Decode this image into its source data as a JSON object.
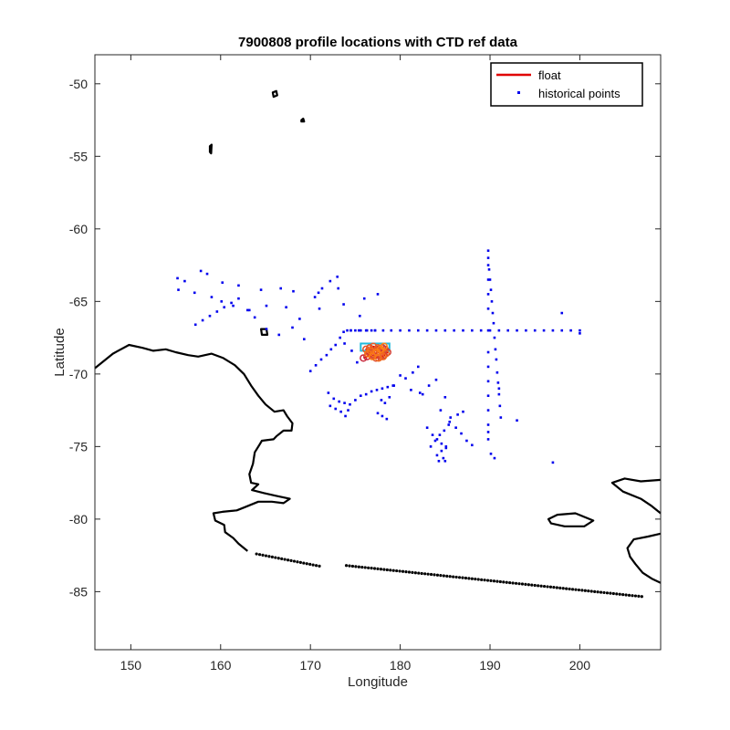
{
  "chart_data": {
    "type": "scatter",
    "title": "7900808 profile locations with CTD ref data",
    "xlabel": "Longitude",
    "ylabel": "Latitude",
    "xlim": [
      146,
      209
    ],
    "ylim": [
      -89,
      -48
    ],
    "xticks": [
      150,
      160,
      170,
      180,
      190,
      200
    ],
    "yticks": [
      -50,
      -55,
      -60,
      -65,
      -70,
      -75,
      -80,
      -85
    ],
    "xtick_labels": [
      "150",
      "160",
      "170",
      "180",
      "190",
      "200"
    ],
    "ytick_labels": [
      "-50",
      "-55",
      "-60",
      "-65",
      "-70",
      "-75",
      "-80",
      "-85"
    ],
    "grid": false,
    "legend_position": "top-right",
    "colors": {
      "float": "#e00000",
      "historical": "#0000ee",
      "coast": "#000000",
      "ref_cyan": "#22bbdd"
    },
    "series": [
      {
        "name": "float",
        "x": [
          175.9,
          176.3,
          176.8,
          177.2,
          177.6,
          178.0,
          178.3,
          178.6,
          178.2,
          177.8,
          177.3,
          176.9,
          176.5,
          176.2,
          176.6,
          177.0,
          177.5,
          177.9,
          178.4,
          178.1,
          177.6,
          177.1,
          176.7,
          176.4,
          176.9,
          177.4,
          177.8,
          178.2
        ],
        "y": [
          -68.9,
          -68.8,
          -68.6,
          -68.4,
          -68.3,
          -68.2,
          -68.3,
          -68.5,
          -68.7,
          -68.8,
          -68.9,
          -68.7,
          -68.5,
          -68.3,
          -68.2,
          -68.1,
          -68.2,
          -68.4,
          -68.6,
          -68.8,
          -68.9,
          -68.6,
          -68.4,
          -68.6,
          -68.8,
          -68.5,
          -68.3,
          -68.1
        ]
      },
      {
        "name": "historical points",
        "x": [
          155.2,
          156.0,
          157.8,
          158.5,
          160.2,
          162.0,
          164.5,
          166.7,
          168.1,
          170.9,
          173.1,
          176.0,
          177.5,
          155.3,
          157.1,
          159.0,
          160.1,
          161.4,
          163.2,
          165.1,
          167.3,
          168.8,
          171.0,
          173.7,
          175.5,
          157.2,
          158.0,
          158.8,
          159.6,
          160.4,
          161.2,
          162.0,
          163.0,
          163.8,
          165.1,
          166.5,
          168.0,
          169.3,
          170.5,
          171.3,
          172.2,
          173.0,
          173.8,
          174.6,
          175.2,
          170.0,
          170.6,
          171.2,
          171.8,
          172.3,
          172.8,
          173.3,
          173.7,
          174.1,
          174.5,
          175.0,
          175.6,
          176.2,
          176.8,
          177.2,
          174.5,
          175.4,
          176.3,
          177.2,
          178.1,
          179.0,
          180.0,
          181.0,
          182.0,
          183.0,
          184.0,
          185.0,
          186.0,
          187.0,
          188.0,
          189.0,
          190.0,
          191.0,
          192.0,
          193.0,
          194.0,
          195.0,
          196.0,
          197.0,
          198.0,
          199.0,
          200.0,
          189.8,
          189.9,
          190.0,
          190.1,
          190.2,
          190.3,
          190.4,
          190.5,
          190.6,
          190.7,
          190.8,
          190.9,
          191.0,
          191.1,
          191.2,
          189.8,
          189.8,
          189.8,
          189.8,
          189.8,
          189.8,
          189.8,
          189.8,
          189.8,
          189.8,
          189.8,
          189.8,
          189.8,
          189.8,
          172.0,
          172.6,
          173.2,
          173.8,
          174.4,
          175.0,
          175.6,
          176.2,
          176.8,
          177.4,
          178.0,
          178.6,
          179.2,
          172.2,
          172.8,
          173.4,
          173.9,
          174.2,
          177.5,
          178.0,
          178.5,
          177.9,
          178.3,
          178.8,
          179.3,
          180.0,
          181.2,
          182.5,
          183.0,
          183.6,
          184.1,
          184.6,
          185.1,
          183.4,
          183.9,
          184.4,
          184.9,
          185.4,
          184.1,
          184.6,
          185.1,
          184.3,
          184.8,
          184.5,
          185.5,
          186.2,
          186.8,
          187.4,
          188.0,
          185.0,
          185.6,
          186.4,
          187.0,
          190.1,
          190.5,
          193.0,
          191.0,
          197.0,
          200.0,
          198.0,
          182.0,
          181.4,
          180.6,
          182.2,
          183.2,
          184.0,
          185.0
        ],
        "y": [
          -63.4,
          -63.6,
          -62.9,
          -63.1,
          -63.7,
          -63.9,
          -64.2,
          -64.1,
          -64.3,
          -64.4,
          -64.1,
          -64.8,
          -64.5,
          -64.2,
          -64.4,
          -64.7,
          -65.0,
          -65.3,
          -65.6,
          -65.3,
          -65.4,
          -66.2,
          -65.5,
          -65.2,
          -66.0,
          -66.6,
          -66.3,
          -66.0,
          -65.7,
          -65.4,
          -65.1,
          -64.8,
          -65.6,
          -66.1,
          -66.9,
          -67.3,
          -66.8,
          -67.6,
          -64.7,
          -64.1,
          -63.6,
          -63.3,
          -67.9,
          -68.4,
          -69.2,
          -69.8,
          -69.4,
          -69.0,
          -68.7,
          -68.3,
          -68.0,
          -67.5,
          -67.1,
          -67.0,
          -67.0,
          -67.0,
          -67.0,
          -67.0,
          -67.0,
          -67.0,
          -67.0,
          -67.0,
          -67.0,
          -67.0,
          -67.0,
          -67.0,
          -67.0,
          -67.0,
          -67.0,
          -67.0,
          -67.0,
          -67.0,
          -67.0,
          -67.0,
          -67.0,
          -67.0,
          -67.0,
          -67.0,
          -67.0,
          -67.0,
          -67.0,
          -67.0,
          -67.0,
          -67.0,
          -67.0,
          -67.0,
          -67.0,
          -62.0,
          -62.8,
          -63.5,
          -64.2,
          -65.0,
          -65.8,
          -66.5,
          -67.5,
          -68.3,
          -69.0,
          -69.9,
          -70.6,
          -71.4,
          -72.2,
          -73.0,
          -61.5,
          -62.5,
          -63.5,
          -64.5,
          -65.5,
          -67.0,
          -68.5,
          -69.5,
          -70.5,
          -71.5,
          -72.5,
          -73.5,
          -74.0,
          -74.5,
          -71.3,
          -71.7,
          -71.9,
          -72.0,
          -72.1,
          -71.8,
          -71.5,
          -71.4,
          -71.2,
          -71.1,
          -71.0,
          -70.9,
          -70.8,
          -72.2,
          -72.4,
          -72.6,
          -72.9,
          -72.5,
          -72.7,
          -72.9,
          -73.1,
          -71.8,
          -72.0,
          -71.6,
          -70.8,
          -70.1,
          -71.1,
          -71.4,
          -73.7,
          -74.2,
          -74.5,
          -74.8,
          -75.1,
          -75.0,
          -74.6,
          -74.2,
          -73.9,
          -73.5,
          -75.6,
          -75.3,
          -75.0,
          -76.0,
          -75.8,
          -72.5,
          -73.3,
          -73.7,
          -74.1,
          -74.6,
          -74.9,
          -76.0,
          -73.0,
          -72.8,
          -72.6,
          -75.5,
          -75.8,
          -73.2,
          -71.0,
          -76.1,
          -67.2,
          -65.8,
          -69.5,
          -69.9,
          -70.3,
          -71.3,
          -70.8,
          -70.4,
          -71.6
        ]
      }
    ]
  },
  "legend": {
    "float_label": "float",
    "hist_label": "historical points"
  }
}
